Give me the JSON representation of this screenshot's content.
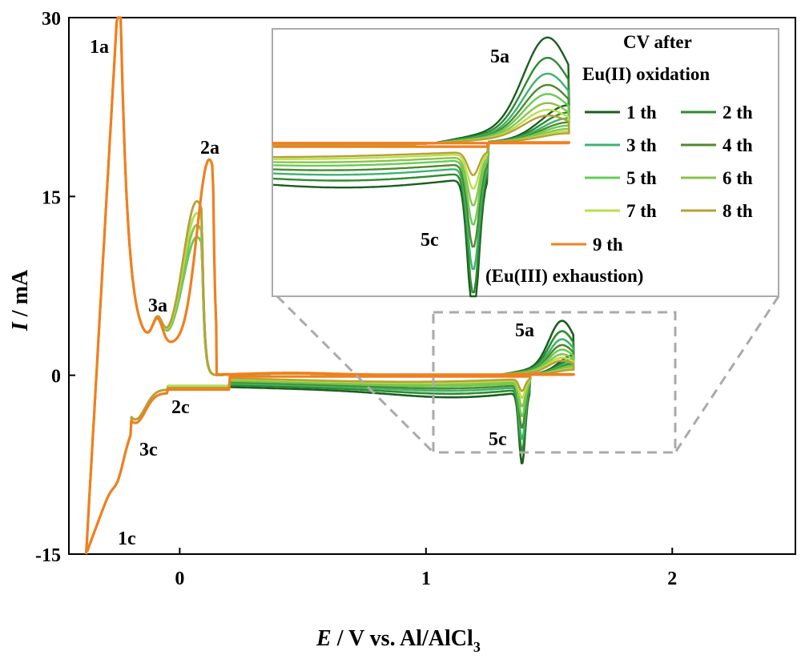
{
  "chart_data": {
    "type": "line",
    "xlabel_var": "E",
    "xlabel_rest": " / V vs. Al/AlCl",
    "xlabel_sub": "3",
    "ylabel_var": "I",
    "ylabel_rest": " / mA",
    "xlim": [
      -0.45,
      2.5
    ],
    "ylim": [
      -15,
      30
    ],
    "xticks": [
      0,
      1,
      2
    ],
    "yticks": [
      -15,
      0,
      15,
      30
    ],
    "grid": false,
    "legend_title_lines": [
      "CV after",
      "Eu(II) oxidation"
    ],
    "legend_note": "(Eu(III) exhaustion)",
    "legend_placement": "inside inset, top-right",
    "inset": {
      "xlim": [
        0.95,
        1.62
      ],
      "ylim": [
        -6.5,
        4.8
      ]
    },
    "series": [
      {
        "name": "1 th",
        "color": "#1b5e20",
        "cath_depth": 6.0,
        "cath_floor": 1.6,
        "anod_peak": 4.5,
        "gap": 1.6
      },
      {
        "name": "2 th",
        "color": "#2e8b2e",
        "cath_depth": 5.2,
        "cath_floor": 1.3,
        "anod_peak": 3.6,
        "gap": 1.35
      },
      {
        "name": "3 th",
        "color": "#3cb371",
        "cath_depth": 4.4,
        "cath_floor": 1.05,
        "anod_peak": 2.9,
        "gap": 1.1
      },
      {
        "name": "4 th",
        "color": "#4f8a2b",
        "cath_depth": 3.6,
        "cath_floor": 0.85,
        "anod_peak": 2.4,
        "gap": 0.9
      },
      {
        "name": "5 th",
        "color": "#66cc55",
        "cath_depth": 2.8,
        "cath_floor": 0.65,
        "anod_peak": 2.0,
        "gap": 0.7
      },
      {
        "name": "6 th",
        "color": "#8bc34a",
        "cath_depth": 2.1,
        "cath_floor": 0.5,
        "anod_peak": 1.6,
        "gap": 0.55
      },
      {
        "name": "7 th",
        "color": "#b8e04a",
        "cath_depth": 1.5,
        "cath_floor": 0.35,
        "anod_peak": 1.3,
        "gap": 0.4
      },
      {
        "name": "8 th",
        "color": "#b8a036",
        "cath_depth": 1.0,
        "cath_floor": 0.25,
        "anod_peak": 1.05,
        "gap": 0.3
      },
      {
        "name": "9 th",
        "color": "#f07f1e",
        "cath_depth": 0.0,
        "cath_floor": 0.0,
        "anod_peak": 0.0,
        "gap": 0.0
      }
    ],
    "peak_labels": {
      "a1": "1a",
      "a2": "2a",
      "a3": "3a",
      "c1": "1c",
      "c2": "2c",
      "c3": "3c",
      "a5": "5a",
      "c5": "5c",
      "a5_inset": "5a",
      "c5_inset": "5c"
    }
  }
}
